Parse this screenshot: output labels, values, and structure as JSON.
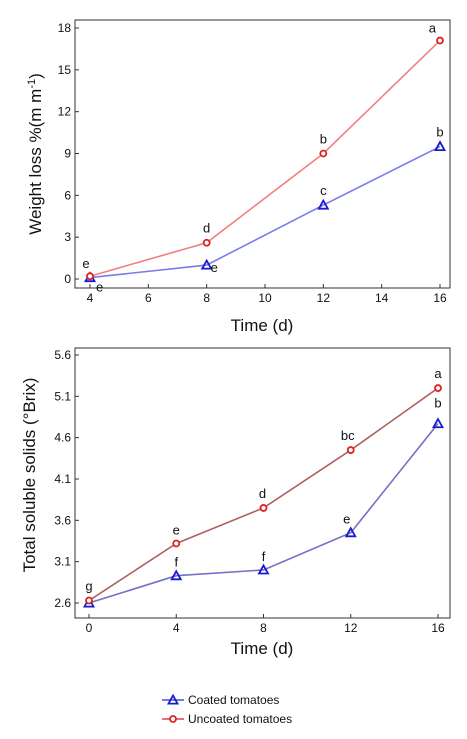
{
  "chart_data": [
    {
      "type": "line",
      "xlabel": "Time (d)",
      "ylabel_main": "Weight loss %",
      "ylabel_unit": "(m m",
      "ylabel_sup": "-1",
      "ylabel_close": ")",
      "xlim": [
        4,
        16
      ],
      "ylim": [
        0,
        18
      ],
      "xticks": [
        4,
        6,
        8,
        10,
        12,
        14,
        16
      ],
      "yticks": [
        0,
        3,
        6,
        9,
        12,
        15,
        18
      ],
      "grid": false,
      "series": [
        {
          "name": "Coated tomatoes",
          "color": "#7a7af0",
          "marker_color": "#1a1acc",
          "marker": "triangle",
          "x": [
            4,
            8,
            12,
            16
          ],
          "y": [
            0.1,
            1.0,
            5.3,
            9.5
          ],
          "letters": [
            "e",
            "e",
            "c",
            "b"
          ]
        },
        {
          "name": "Uncoated tomatoes",
          "color": "#f08080",
          "marker_color": "#dd2222",
          "marker": "circle",
          "x": [
            4,
            8,
            12,
            16
          ],
          "y": [
            0.2,
            2.6,
            9.0,
            17.1
          ],
          "letters": [
            "e",
            "d",
            "b",
            "a"
          ]
        }
      ]
    },
    {
      "type": "line",
      "xlabel": "Time (d)",
      "ylabel_main": "Total soluble solids (°Brix)",
      "xlim": [
        0,
        16
      ],
      "ylim": [
        2.6,
        5.6
      ],
      "xticks": [
        0,
        4,
        8,
        12,
        16
      ],
      "yticks": [
        "2.6",
        "3.1",
        "3.6",
        "4.1",
        "4.6",
        "5.1",
        "5.6"
      ],
      "grid": false,
      "series": [
        {
          "name": "Coated tomatoes",
          "color": "#7070c8",
          "marker_color": "#1a1acc",
          "marker": "triangle",
          "x": [
            0,
            4,
            8,
            12,
            16
          ],
          "y": [
            2.6,
            2.93,
            3.0,
            3.45,
            4.77
          ],
          "letters": [
            "",
            "f",
            "f",
            "e",
            "b"
          ]
        },
        {
          "name": "Uncoated tomatoes",
          "color": "#b06060",
          "marker_color": "#dd2222",
          "marker": "circle",
          "x": [
            0,
            4,
            8,
            12,
            16
          ],
          "y": [
            2.63,
            3.32,
            3.75,
            4.45,
            5.2
          ],
          "letters": [
            "g",
            "e",
            "d",
            "bc",
            "a"
          ]
        }
      ]
    }
  ],
  "legend": {
    "items": [
      {
        "label": "Coated tomatoes",
        "color": "#4a4ad8",
        "marker_color": "#1a1acc",
        "marker": "triangle"
      },
      {
        "label": "Uncoated tomatoes",
        "color": "#dd4444",
        "marker_color": "#dd2222",
        "marker": "circle"
      }
    ]
  }
}
